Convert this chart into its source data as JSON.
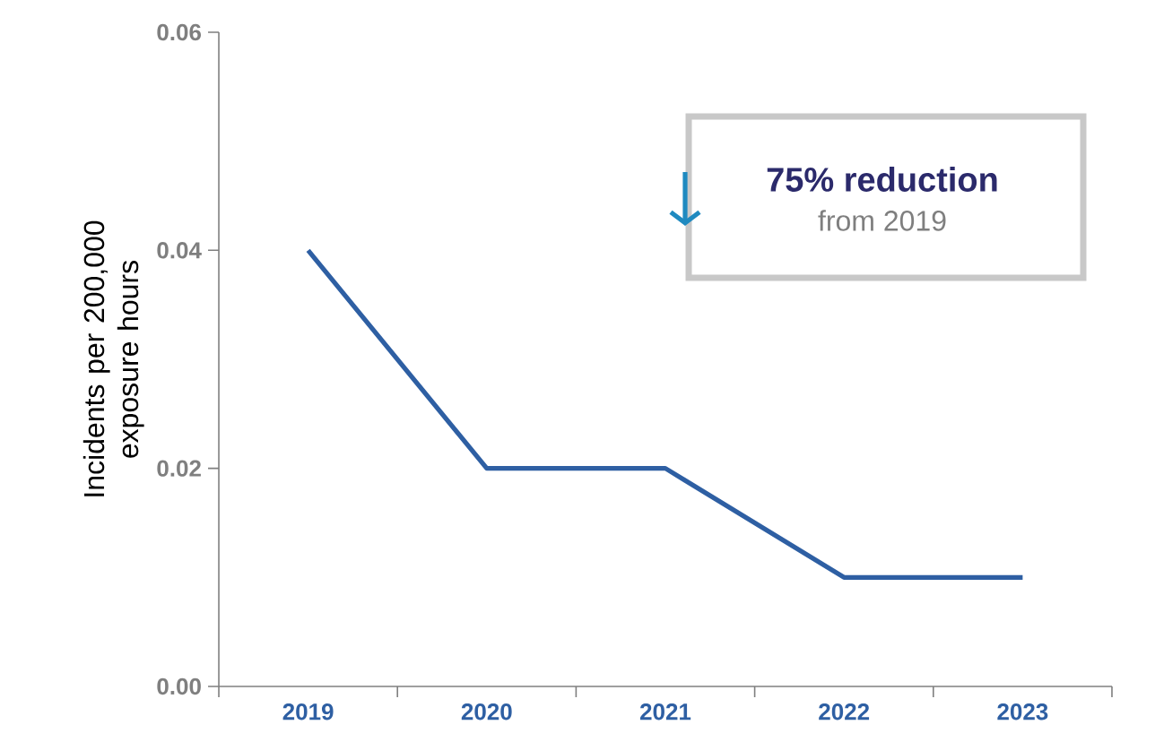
{
  "chart_data": {
    "type": "line",
    "ylabel": "Incidents per 200,000 exposure hours",
    "categories": [
      "2019",
      "2020",
      "2021",
      "2022",
      "2023"
    ],
    "series": [
      {
        "color": "#2e5fa3",
        "values": [
          0.04,
          0.02,
          0.02,
          0.01,
          0.01
        ]
      }
    ],
    "ylim": [
      0,
      0.06
    ],
    "yticks": [
      {
        "value": 0,
        "label": "0.00"
      },
      {
        "value": 0.02,
        "label": "0.02"
      },
      {
        "value": 0.04,
        "label": "0.04"
      },
      {
        "value": 0.06,
        "label": "0.06"
      }
    ],
    "annotations": [
      "75% reduction",
      "from 2019"
    ],
    "marker": "none",
    "line_style": "solid"
  }
}
